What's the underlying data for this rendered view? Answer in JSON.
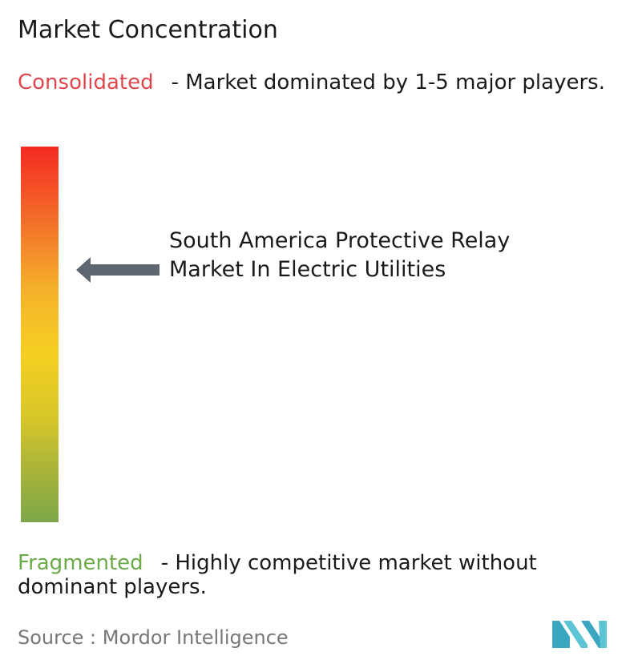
{
  "title": "Market Concentration",
  "consolidated": {
    "term": "Consolidated",
    "description": "- Market dominated by 1-5 major players."
  },
  "fragmented": {
    "term": "Fragmented",
    "description": "- Highly competitive market without dominant players."
  },
  "market_label": "South America Protective Relay Market In Electric Utilities",
  "source": "Source :  Mordor Intelligence",
  "colors": {
    "consolidated": "#e0474c",
    "fragmented": "#6aaa48",
    "scale_top": "#f52a22",
    "scale_middle": "#f6cf22",
    "scale_bottom": "#7da649",
    "arrow": "#5e6670",
    "logo": "#4fb6c9"
  },
  "icons": {
    "arrow": "arrow-left-icon",
    "logo": "mordor-intelligence-logo"
  }
}
